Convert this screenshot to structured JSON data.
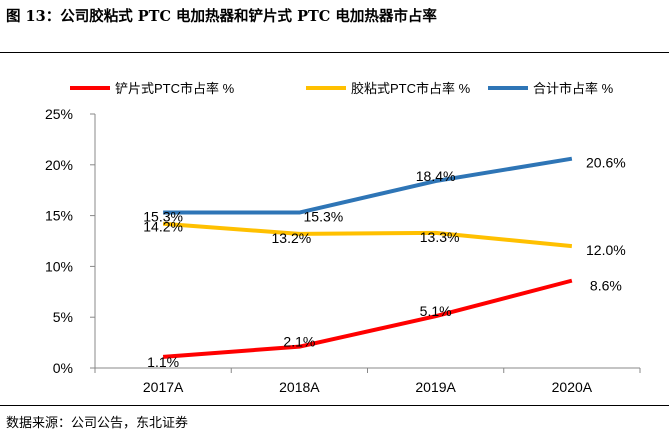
{
  "figure": {
    "title": "图 13：公司胶粘式 PTC 电加热器和铲片式 PTC 电加热器市占率",
    "source": "数据来源：公司公告，东北证券"
  },
  "chart_data": {
    "type": "line",
    "title": "公司胶粘式 PTC 电加热器和铲片式 PTC 电加热器市占率",
    "categories": [
      "2017A",
      "2018A",
      "2019A",
      "2020A"
    ],
    "ylim": [
      0,
      25
    ],
    "yticks": [
      0,
      5,
      10,
      15,
      20,
      25
    ],
    "ytick_labels": [
      "0%",
      "5%",
      "10%",
      "15%",
      "20%",
      "25%"
    ],
    "legend_position": "top",
    "series": [
      {
        "name": "铲片式PTC市占率 %",
        "color": "#ff0000",
        "values": [
          1.1,
          2.1,
          5.1,
          8.6
        ],
        "labels": [
          "1.1%",
          "2.1%",
          "5.1%",
          "8.6%"
        ]
      },
      {
        "name": "胶粘式PTC市占率 %",
        "color": "#ffc000",
        "values": [
          14.2,
          13.2,
          13.3,
          12.0
        ],
        "labels": [
          "14.2%",
          "13.2%",
          "13.3%",
          "12.0%"
        ]
      },
      {
        "name": "合计市占率 %",
        "color": "#2e75b6",
        "values": [
          15.3,
          15.3,
          18.4,
          20.6
        ],
        "labels": [
          "15.3%",
          "15.3%",
          "18.4%",
          "20.6%"
        ]
      }
    ]
  }
}
